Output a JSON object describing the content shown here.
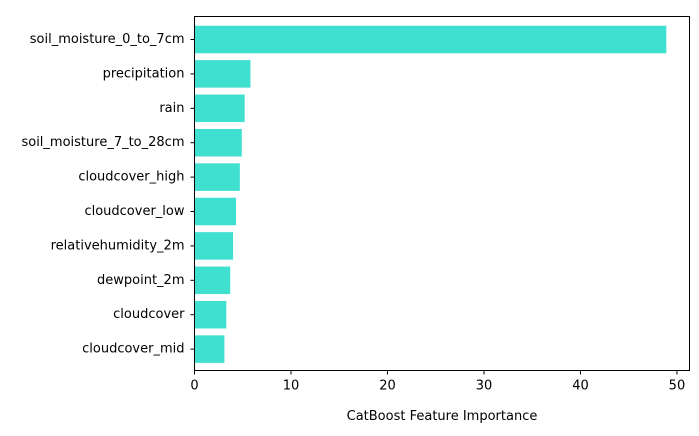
{
  "chart_data": {
    "type": "bar",
    "orientation": "horizontal",
    "title": "",
    "xlabel": "CatBoost Feature Importance",
    "ylabel": "",
    "categories": [
      "soil_moisture_0_to_7cm",
      "precipitation",
      "rain",
      "soil_moisture_7_to_28cm",
      "cloudcover_high",
      "cloudcover_low",
      "relativehumidity_2m",
      "dewpoint_2m",
      "cloudcover",
      "cloudcover_mid"
    ],
    "values": [
      48.9,
      5.8,
      5.2,
      4.9,
      4.7,
      4.3,
      4.0,
      3.7,
      3.3,
      3.1
    ],
    "xlim": [
      0,
      51.3
    ],
    "xticks": [
      0,
      10,
      20,
      30,
      40,
      50
    ],
    "grid": false,
    "legend": "none",
    "bar_color": "#40E0D0"
  }
}
